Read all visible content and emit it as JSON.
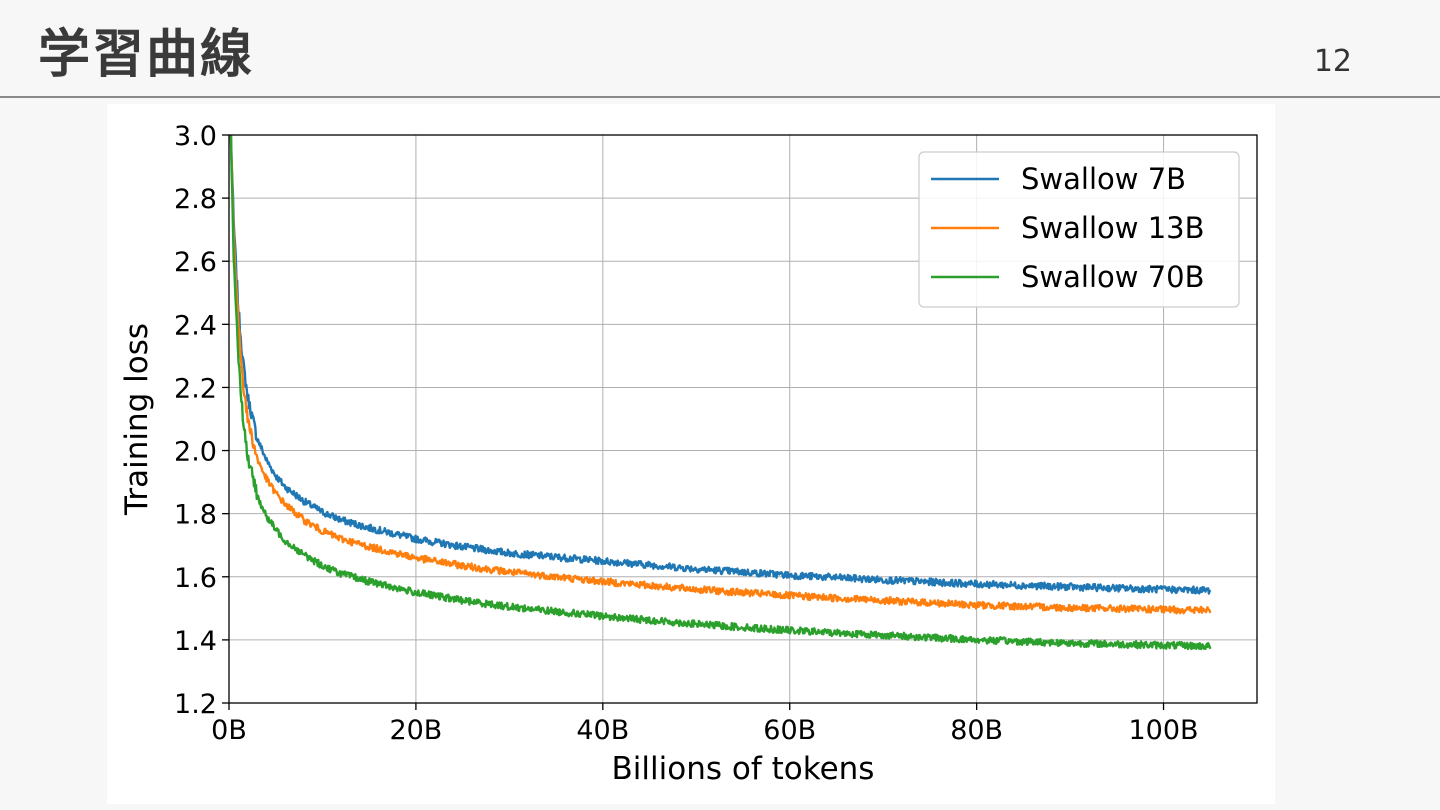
{
  "slide": {
    "title": "学習曲線",
    "page_number": "12"
  },
  "colors": {
    "swallow_7b": "#1f77b4",
    "swallow_13b": "#ff7f0e",
    "swallow_70b": "#2ca02c",
    "grid": "#b0b0b0"
  },
  "chart_data": {
    "type": "line",
    "title": "",
    "xlabel": "Billions of tokens",
    "ylabel": "Training loss",
    "xlim": [
      0,
      110
    ],
    "ylim": [
      1.2,
      3.0
    ],
    "x_ticks": [
      0,
      20,
      40,
      60,
      80,
      100
    ],
    "x_tick_labels": [
      "0B",
      "20B",
      "40B",
      "60B",
      "80B",
      "100B"
    ],
    "y_ticks": [
      1.2,
      1.4,
      1.6,
      1.8,
      2.0,
      2.2,
      2.4,
      2.6,
      2.8,
      3.0
    ],
    "y_tick_labels": [
      "1.2",
      "1.4",
      "1.6",
      "1.8",
      "2.0",
      "2.2",
      "2.4",
      "2.6",
      "2.8",
      "3.0"
    ],
    "grid": true,
    "legend_position": "top-right",
    "series": [
      {
        "name": "Swallow 7B",
        "color": "#1f77b4",
        "x": [
          0.2,
          0.5,
          1,
          1.5,
          2,
          3,
          4,
          5,
          6,
          8,
          10,
          12,
          15,
          20,
          25,
          30,
          40,
          50,
          60,
          70,
          80,
          90,
          100,
          105
        ],
        "y": [
          3.0,
          2.72,
          2.45,
          2.28,
          2.17,
          2.04,
          1.97,
          1.92,
          1.885,
          1.84,
          1.805,
          1.78,
          1.755,
          1.72,
          1.695,
          1.675,
          1.65,
          1.625,
          1.605,
          1.59,
          1.577,
          1.568,
          1.56,
          1.557
        ]
      },
      {
        "name": "Swallow 13B",
        "color": "#ff7f0e",
        "x": [
          0.2,
          0.5,
          1,
          1.5,
          2,
          3,
          4,
          5,
          6,
          8,
          10,
          12,
          15,
          20,
          25,
          30,
          40,
          50,
          60,
          70,
          80,
          90,
          100,
          105
        ],
        "y": [
          3.0,
          2.68,
          2.4,
          2.22,
          2.1,
          1.975,
          1.91,
          1.865,
          1.83,
          1.78,
          1.745,
          1.72,
          1.695,
          1.66,
          1.635,
          1.615,
          1.585,
          1.56,
          1.54,
          1.525,
          1.51,
          1.502,
          1.496,
          1.494
        ]
      },
      {
        "name": "Swallow 70B",
        "color": "#2ca02c",
        "x": [
          0.2,
          0.5,
          1,
          1.5,
          2,
          3,
          4,
          5,
          6,
          8,
          10,
          12,
          15,
          20,
          25,
          30,
          40,
          50,
          60,
          70,
          80,
          90,
          100,
          105
        ],
        "y": [
          3.0,
          2.62,
          2.3,
          2.1,
          1.98,
          1.86,
          1.79,
          1.75,
          1.715,
          1.67,
          1.635,
          1.61,
          1.585,
          1.55,
          1.525,
          1.505,
          1.475,
          1.45,
          1.43,
          1.415,
          1.4,
          1.39,
          1.383,
          1.38
        ]
      }
    ]
  }
}
